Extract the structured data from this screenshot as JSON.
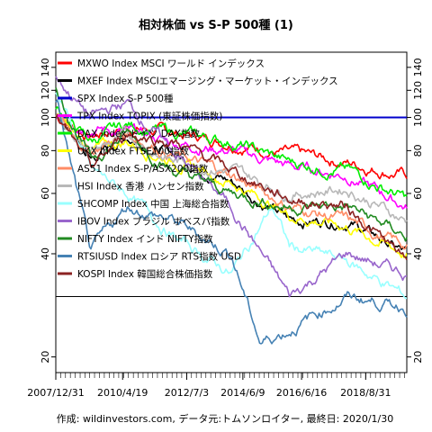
{
  "chart_data": {
    "type": "line",
    "title": "相対株価 vs S-P 500種 (1)",
    "footer": "作成: wildinvestors.com, データ元:トムソンロイター, 最終日: 2020/1/30",
    "y_scale": "log",
    "ylim": [
      18,
      155
    ],
    "y_ticks": [
      20,
      40,
      60,
      80,
      100,
      120,
      140
    ],
    "x_tick_labels": [
      "2007/12/31",
      "2010/4/19",
      "2012/7/3",
      "2014/6/9",
      "2016/6/16",
      "2018/8/31"
    ],
    "x_range": [
      "2007-12-31",
      "2020-01-30"
    ],
    "reference_line": 30,
    "legend_position": "top-left",
    "series": [
      {
        "name": "MXWO Index MSCI ワールド インデックス",
        "color": "#ff0000",
        "points": [
          [
            "2008-01",
            100
          ],
          [
            "2009-03",
            88
          ],
          [
            "2010-06",
            94
          ],
          [
            "2012-01",
            90
          ],
          [
            "2014-01",
            85
          ],
          [
            "2016-01",
            78
          ],
          [
            "2018-01",
            74
          ],
          [
            "2020-01",
            68
          ]
        ]
      },
      {
        "name": "MXEF Index MSCIエマージング・マーケット・インデックス",
        "color": "#000000",
        "points": [
          [
            "2008-01",
            100
          ],
          [
            "2009-03",
            75
          ],
          [
            "2010-06",
            88
          ],
          [
            "2012-01",
            78
          ],
          [
            "2014-01",
            65
          ],
          [
            "2016-01",
            50
          ],
          [
            "2018-01",
            50
          ],
          [
            "2020-01",
            40
          ]
        ]
      },
      {
        "name": "SPX Index S-P 500種",
        "color": "#0000cc",
        "points": [
          [
            "2008-01",
            100
          ],
          [
            "2020-01",
            100
          ]
        ]
      },
      {
        "name": "TPX Index TOPIX (東証株価指数)",
        "color": "#ff00ff",
        "points": [
          [
            "2008-01",
            100
          ],
          [
            "2009-03",
            95
          ],
          [
            "2010-06",
            90
          ],
          [
            "2012-01",
            85
          ],
          [
            "2014-01",
            80
          ],
          [
            "2016-01",
            72
          ],
          [
            "2018-01",
            68
          ],
          [
            "2020-01",
            55
          ]
        ]
      },
      {
        "name": "DAX Index ドイツ DAX指数",
        "color": "#00ee00",
        "points": [
          [
            "2008-01",
            105
          ],
          [
            "2009-03",
            85
          ],
          [
            "2010-06",
            95
          ],
          [
            "2012-01",
            90
          ],
          [
            "2014-01",
            85
          ],
          [
            "2016-01",
            74
          ],
          [
            "2018-01",
            70
          ],
          [
            "2020-01",
            58
          ]
        ]
      },
      {
        "name": "UKX Index FTSE100指数",
        "color": "#ffff00",
        "points": [
          [
            "2008-01",
            100
          ],
          [
            "2009-03",
            80
          ],
          [
            "2010-06",
            85
          ],
          [
            "2012-01",
            75
          ],
          [
            "2014-01",
            65
          ],
          [
            "2016-01",
            52
          ],
          [
            "2018-01",
            48
          ],
          [
            "2020-01",
            40
          ]
        ]
      },
      {
        "name": "AS51 Index S-P/ASX200指数",
        "color": "#ff8c66",
        "points": [
          [
            "2008-01",
            100
          ],
          [
            "2009-03",
            80
          ],
          [
            "2010-06",
            90
          ],
          [
            "2012-01",
            78
          ],
          [
            "2014-01",
            68
          ],
          [
            "2016-01",
            55
          ],
          [
            "2018-01",
            50
          ],
          [
            "2020-01",
            42
          ]
        ]
      },
      {
        "name": "HSI Index 香港 ハンセン指数",
        "color": "#b8b8b8",
        "points": [
          [
            "2008-01",
            100
          ],
          [
            "2009-03",
            80
          ],
          [
            "2010-06",
            88
          ],
          [
            "2012-01",
            75
          ],
          [
            "2014-01",
            70
          ],
          [
            "2016-01",
            60
          ],
          [
            "2018-01",
            62
          ],
          [
            "2020-01",
            50
          ]
        ]
      },
      {
        "name": "SHCOMP Index 中国 上海総合指数",
        "color": "#99ffff",
        "points": [
          [
            "2008-01",
            120
          ],
          [
            "2009-03",
            70
          ],
          [
            "2010-06",
            60
          ],
          [
            "2012-01",
            45
          ],
          [
            "2014-01",
            35
          ],
          [
            "2015-06",
            55
          ],
          [
            "2016-01",
            42
          ],
          [
            "2018-01",
            38
          ],
          [
            "2020-01",
            30
          ]
        ]
      },
      {
        "name": "IBOV Index ブラジル ボベスパ指数",
        "color": "#9966cc",
        "points": [
          [
            "2008-01",
            130
          ],
          [
            "2009-03",
            100
          ],
          [
            "2010-06",
            110
          ],
          [
            "2012-01",
            80
          ],
          [
            "2014-01",
            55
          ],
          [
            "2016-01",
            30
          ],
          [
            "2018-01",
            40
          ],
          [
            "2020-01",
            35
          ]
        ]
      },
      {
        "name": "NIFTY Index インド NIFTY指数",
        "color": "#228b22",
        "points": [
          [
            "2008-01",
            120
          ],
          [
            "2009-03",
            75
          ],
          [
            "2010-06",
            90
          ],
          [
            "2012-01",
            70
          ],
          [
            "2014-01",
            60
          ],
          [
            "2016-01",
            55
          ],
          [
            "2018-01",
            55
          ],
          [
            "2020-01",
            45
          ]
        ]
      },
      {
        "name": "RTSIUSD Index ロシア RTS指数 USD",
        "color": "#4682b4",
        "points": [
          [
            "2008-01",
            110
          ],
          [
            "2009-03",
            40
          ],
          [
            "2010-06",
            55
          ],
          [
            "2012-01",
            50
          ],
          [
            "2014-01",
            40
          ],
          [
            "2015-01",
            22
          ],
          [
            "2016-01",
            24
          ],
          [
            "2018-01",
            30
          ],
          [
            "2020-01",
            28
          ]
        ]
      },
      {
        "name": "KOSPI Index 韓国総合株価指数",
        "color": "#8b2222",
        "points": [
          [
            "2008-01",
            100
          ],
          [
            "2009-03",
            70
          ],
          [
            "2010-06",
            90
          ],
          [
            "2012-01",
            85
          ],
          [
            "2014-01",
            70
          ],
          [
            "2016-01",
            58
          ],
          [
            "2018-01",
            55
          ],
          [
            "2020-01",
            38
          ]
        ]
      }
    ]
  }
}
